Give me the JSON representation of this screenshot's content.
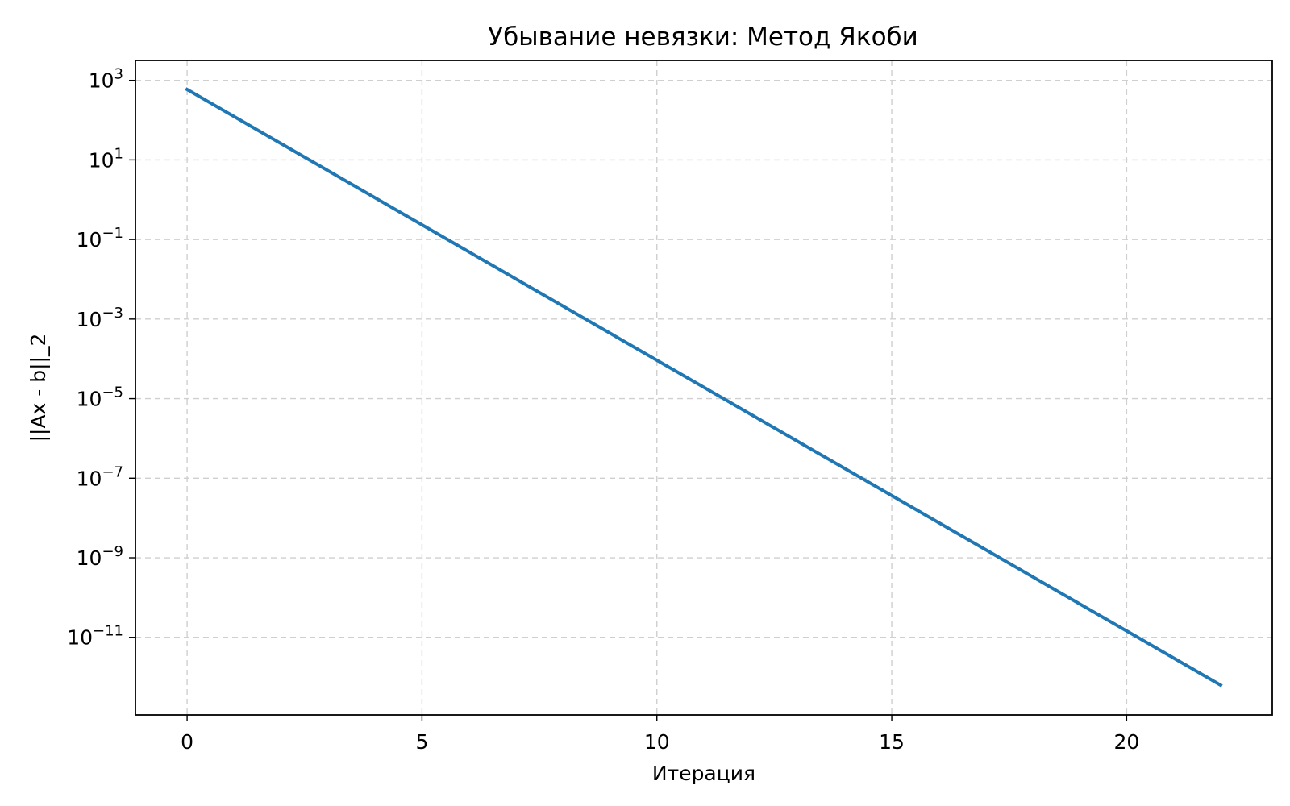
{
  "chart_data": {
    "type": "line",
    "title": "Убывание невязки: Метод Якоби",
    "xlabel": "Итерация",
    "ylabel": "||Ax - b||_2",
    "yscale": "log",
    "xlim": [
      -1.1,
      23.1
    ],
    "ylim_log10": [
      -12.95,
      3.5
    ],
    "xticks": [
      0,
      5,
      10,
      15,
      20
    ],
    "yticks": [
      {
        "exp": 3,
        "base": "10",
        "sup": "3"
      },
      {
        "exp": 1,
        "base": "10",
        "sup": "1"
      },
      {
        "exp": -1,
        "base": "10",
        "sup": "−1"
      },
      {
        "exp": -3,
        "base": "10",
        "sup": "−3"
      },
      {
        "exp": -5,
        "base": "10",
        "sup": "−5"
      },
      {
        "exp": -7,
        "base": "10",
        "sup": "−7"
      },
      {
        "exp": -9,
        "base": "10",
        "sup": "−9"
      },
      {
        "exp": -11,
        "base": "10",
        "sup": "−11"
      }
    ],
    "grid": true,
    "series": [
      {
        "color": "#1f77b4",
        "x": [
          0,
          22
        ],
        "log10_y": [
          2.77,
          -12.2
        ]
      }
    ]
  }
}
